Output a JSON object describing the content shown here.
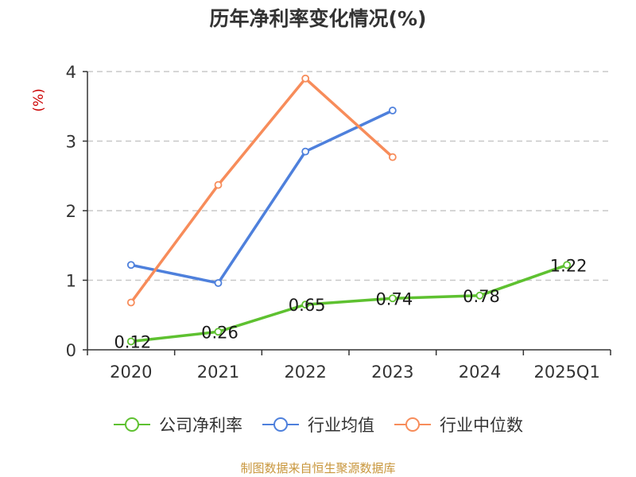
{
  "title": "历年净利率变化情况(%)",
  "source_note": "制图数据来自恒生聚源数据库",
  "chart_data": {
    "type": "line",
    "title": "历年净利率变化情况(%)",
    "ylabel": "(%)",
    "categories": [
      "2020",
      "2021",
      "2022",
      "2023",
      "2024",
      "2025Q1"
    ],
    "ylim": [
      0,
      4
    ],
    "yticks": [
      0,
      1,
      2,
      3,
      4
    ],
    "grid": true,
    "legend_position": "bottom",
    "series": [
      {
        "name": "公司净利率",
        "color": "#5ec130",
        "values": [
          0.12,
          0.26,
          0.65,
          0.74,
          0.78,
          1.22
        ],
        "show_labels": true
      },
      {
        "name": "行业均值",
        "color": "#4e80dc",
        "values": [
          1.22,
          0.96,
          2.85,
          3.44,
          null,
          null
        ],
        "show_labels": false
      },
      {
        "name": "行业中位数",
        "color": "#f78c5a",
        "values": [
          0.68,
          2.37,
          3.9,
          2.77,
          null,
          null
        ],
        "show_labels": false
      }
    ]
  }
}
